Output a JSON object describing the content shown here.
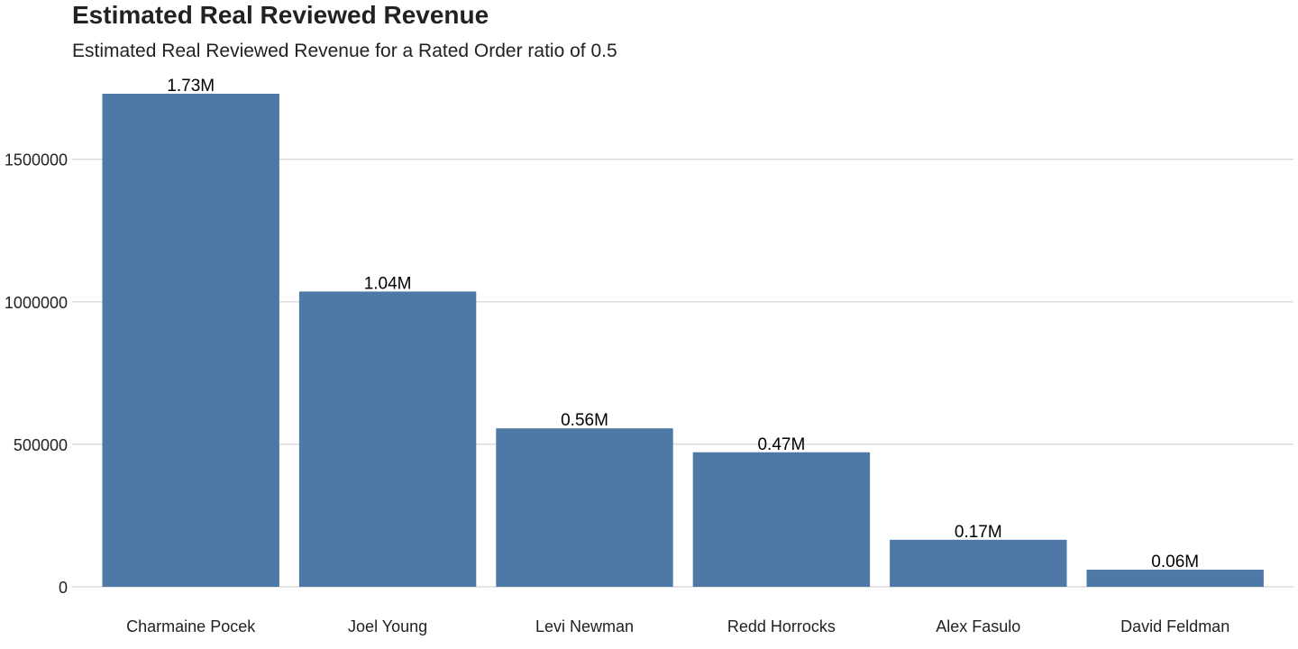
{
  "chart_data": {
    "type": "bar",
    "title": "Estimated Real Reviewed Revenue",
    "subtitle": "Estimated Real Reviewed Revenue for a Rated Order ratio of 0.5",
    "xlabel": "",
    "ylabel": "",
    "categories": [
      "Charmaine Pocek",
      "Joel Young",
      "Levi Newman",
      "Redd Horrocks",
      "Alex Fasulo",
      "David Feldman"
    ],
    "values": [
      1730000,
      1036000,
      556000,
      472000,
      165000,
      60000
    ],
    "data_labels": [
      "1.73M",
      "1.04M",
      "0.56M",
      "0.47M",
      "0.17M",
      "0.06M"
    ],
    "yticks": [
      0,
      500000,
      1000000,
      1500000
    ],
    "ytick_labels": [
      "0",
      "500000",
      "1000000",
      "1500000"
    ],
    "ylim": [
      0,
      1730000
    ],
    "grid": true,
    "legend": "none",
    "bar_color": "#4e79a7",
    "grid_color": "#cbcbcb"
  }
}
